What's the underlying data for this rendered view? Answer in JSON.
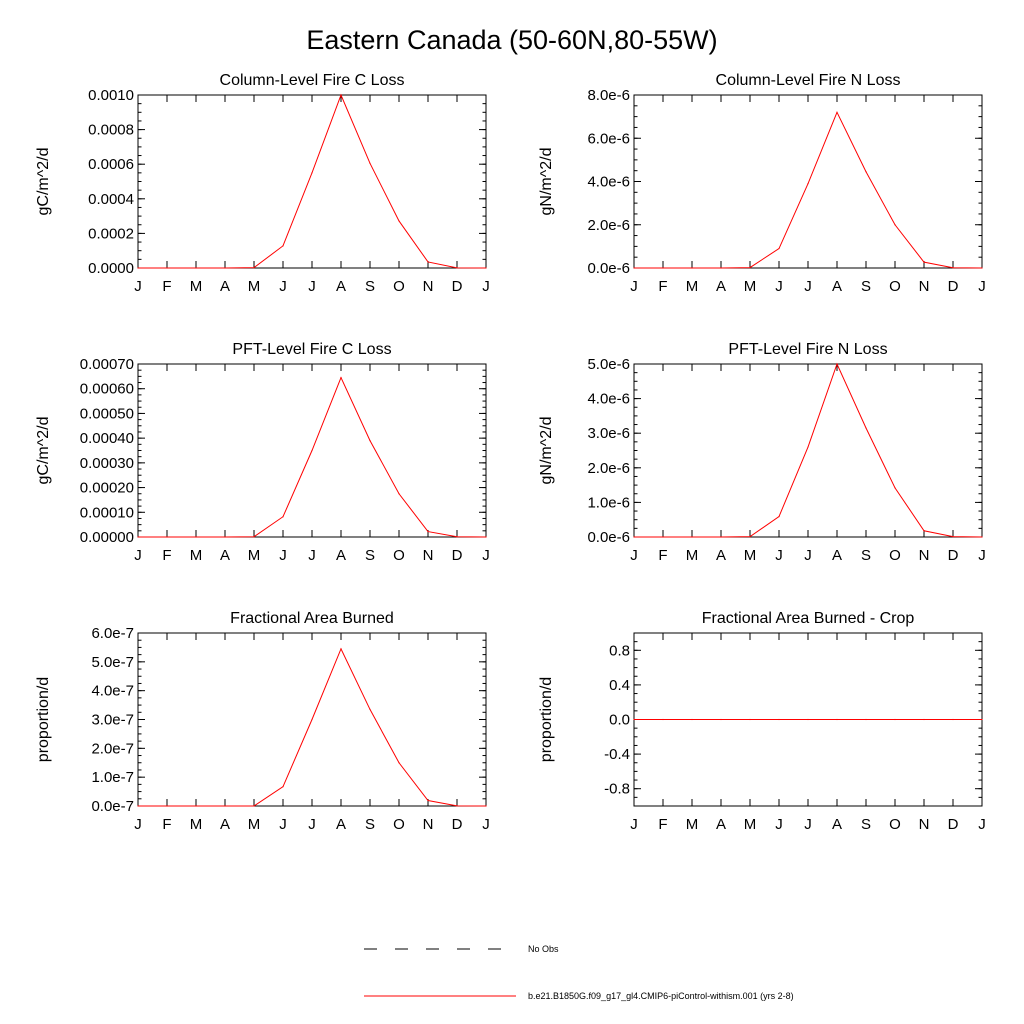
{
  "figure": {
    "title": "Eastern Canada (50-60N,80-55W)"
  },
  "legend": {
    "items": [
      {
        "label": "No Obs",
        "style": "dashed",
        "color": "#000000"
      },
      {
        "label": "b.e21.B1850G.f09_g17_gl4.CMIP6-piControl-withism.001 (yrs 2-8)",
        "style": "solid",
        "color": "#ff0000"
      }
    ]
  },
  "colors": {
    "series": "#ff0000",
    "axis": "#000000",
    "background": "#ffffff"
  },
  "chart_data": [
    {
      "type": "line",
      "title": "Column-Level Fire C Loss",
      "xlabel": "",
      "ylabel": "gC/m^2/d",
      "categories": [
        "J",
        "F",
        "M",
        "A",
        "M",
        "J",
        "J",
        "A",
        "S",
        "O",
        "N",
        "D",
        "J"
      ],
      "ylim": [
        0,
        0.001
      ],
      "yticks": [
        "0.0000",
        "0.0002",
        "0.0004",
        "0.0006",
        "0.0008",
        "0.0010"
      ],
      "series": [
        {
          "name": "b.e21.B1850G.f09_g17_gl4.CMIP6-piControl-withism.001 (yrs 2-8)",
          "values": [
            0,
            0,
            0,
            0,
            2e-06,
            0.000128,
            0.00055,
            0.001,
            0.000605,
            0.000272,
            3.5e-05,
            1e-06,
            0
          ]
        }
      ]
    },
    {
      "type": "line",
      "title": "Column-Level Fire N Loss",
      "xlabel": "",
      "ylabel": "gN/m^2/d",
      "categories": [
        "J",
        "F",
        "M",
        "A",
        "M",
        "J",
        "J",
        "A",
        "S",
        "O",
        "N",
        "D",
        "J"
      ],
      "ylim": [
        0,
        8e-06
      ],
      "yticks": [
        "0.0e-6",
        "2.0e-6",
        "4.0e-6",
        "6.0e-6",
        "8.0e-6"
      ],
      "series": [
        {
          "name": "b.e21.B1850G.f09_g17_gl4.CMIP6-piControl-withism.001 (yrs 2-8)",
          "values": [
            0,
            0,
            0,
            0,
            2e-08,
            9e-07,
            3.9e-06,
            7.2e-06,
            4.45e-06,
            2e-06,
            2.7e-07,
            1e-08,
            0
          ]
        }
      ]
    },
    {
      "type": "line",
      "title": "PFT-Level Fire C Loss",
      "xlabel": "",
      "ylabel": "gC/m^2/d",
      "categories": [
        "J",
        "F",
        "M",
        "A",
        "M",
        "J",
        "J",
        "A",
        "S",
        "O",
        "N",
        "D",
        "J"
      ],
      "ylim": [
        0,
        0.0007
      ],
      "yticks": [
        "0.00000",
        "0.00010",
        "0.00020",
        "0.00030",
        "0.00040",
        "0.00050",
        "0.00060",
        "0.00070"
      ],
      "series": [
        {
          "name": "b.e21.B1850G.f09_g17_gl4.CMIP6-piControl-withism.001 (yrs 2-8)",
          "values": [
            0,
            0,
            0,
            0,
            1e-06,
            8.2e-05,
            0.00035,
            0.000645,
            0.00039,
            0.000175,
            2.2e-05,
            1e-06,
            0
          ]
        }
      ]
    },
    {
      "type": "line",
      "title": "PFT-Level Fire N Loss",
      "xlabel": "",
      "ylabel": "gN/m^2/d",
      "categories": [
        "J",
        "F",
        "M",
        "A",
        "M",
        "J",
        "J",
        "A",
        "S",
        "O",
        "N",
        "D",
        "J"
      ],
      "ylim": [
        0,
        5e-06
      ],
      "yticks": [
        "0.0e-6",
        "1.0e-6",
        "2.0e-6",
        "3.0e-6",
        "4.0e-6",
        "5.0e-6"
      ],
      "series": [
        {
          "name": "b.e21.B1850G.f09_g17_gl4.CMIP6-piControl-withism.001 (yrs 2-8)",
          "values": [
            0,
            0,
            0,
            0,
            1e-08,
            5.9e-07,
            2.6e-06,
            5e-06,
            3.15e-06,
            1.42e-06,
            1.8e-07,
            1e-08,
            0
          ]
        }
      ]
    },
    {
      "type": "line",
      "title": "Fractional Area Burned",
      "xlabel": "",
      "ylabel": "proportion/d",
      "categories": [
        "J",
        "F",
        "M",
        "A",
        "M",
        "J",
        "J",
        "A",
        "S",
        "O",
        "N",
        "D",
        "J"
      ],
      "ylim": [
        0,
        6e-07
      ],
      "yticks": [
        "0.0e-7",
        "1.0e-7",
        "2.0e-7",
        "3.0e-7",
        "4.0e-7",
        "5.0e-7",
        "6.0e-7"
      ],
      "series": [
        {
          "name": "b.e21.B1850G.f09_g17_gl4.CMIP6-piControl-withism.001 (yrs 2-8)",
          "values": [
            0,
            0,
            0,
            0,
            2e-10,
            6.7e-08,
            3e-07,
            5.45e-07,
            3.35e-07,
            1.5e-07,
            1.9e-08,
            5e-10,
            0
          ]
        }
      ]
    },
    {
      "type": "line",
      "title": "Fractional Area Burned - Crop",
      "xlabel": "",
      "ylabel": "proportion/d",
      "categories": [
        "J",
        "F",
        "M",
        "A",
        "M",
        "J",
        "J",
        "A",
        "S",
        "O",
        "N",
        "D",
        "J"
      ],
      "ylim": [
        -1.0,
        1.0
      ],
      "yticks": [
        "-0.8",
        "-0.4",
        "0.0",
        "0.4",
        "0.8"
      ],
      "series": [
        {
          "name": "b.e21.B1850G.f09_g17_gl4.CMIP6-piControl-withism.001 (yrs 2-8)",
          "values": [
            0,
            0,
            0,
            0,
            0,
            0,
            0,
            0,
            0,
            0,
            0,
            0,
            0
          ]
        }
      ]
    }
  ]
}
